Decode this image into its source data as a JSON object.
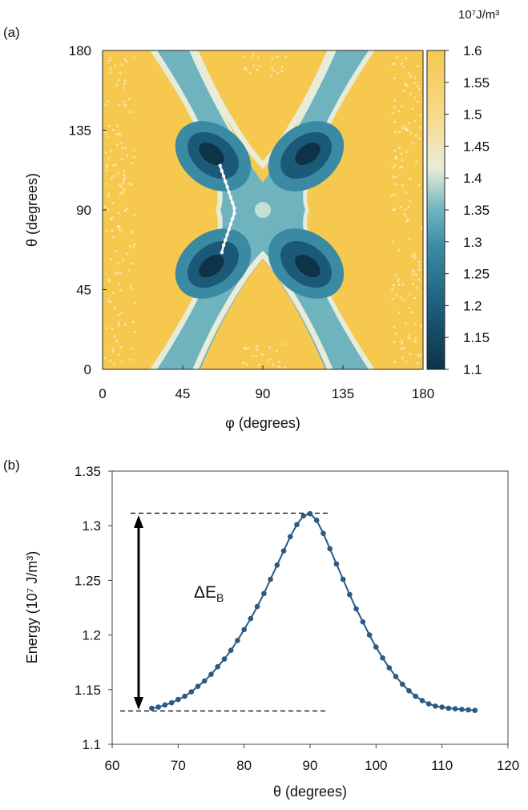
{
  "chart_data": [
    {
      "type": "heatmap",
      "panel_label": "(a)",
      "xlabel": "φ (degrees)",
      "ylabel": "θ (degrees)",
      "xlim": [
        0,
        180
      ],
      "ylim": [
        0,
        180
      ],
      "xticks": [
        "0",
        "45",
        "90",
        "135",
        "180"
      ],
      "yticks": [
        "0",
        "45",
        "90",
        "135",
        "180"
      ],
      "colorbar": {
        "unit": "10⁷J/m³",
        "range": [
          1.1,
          1.6
        ],
        "ticks": [
          "1.6",
          "1.55",
          "1.5",
          "1.45",
          "1.4",
          "1.35",
          "1.3",
          "1.25",
          "1.2",
          "1.15",
          "1.1"
        ],
        "colors": [
          "#0e3248",
          "#1a5a78",
          "#3a8aa3",
          "#6fb3bf",
          "#e8ecd9",
          "#f6dc8f",
          "#f6c84e"
        ]
      },
      "path": {
        "color": "#ffffff",
        "points": [
          [
            66,
            115
          ],
          [
            67,
            112
          ],
          [
            68,
            109
          ],
          [
            69,
            106
          ],
          [
            70,
            103
          ],
          [
            71,
            100
          ],
          [
            72,
            97
          ],
          [
            73,
            94
          ],
          [
            74,
            91
          ],
          [
            74,
            88
          ],
          [
            73,
            85
          ],
          [
            72,
            82
          ],
          [
            71,
            79
          ],
          [
            70,
            76
          ],
          [
            69,
            73
          ],
          [
            68,
            70
          ],
          [
            67,
            66
          ]
        ]
      },
      "minima": [
        [
          63,
          118
        ],
        [
          113,
          118
        ],
        [
          63,
          62
        ],
        [
          113,
          62
        ]
      ],
      "saddle": [
        90,
        90
      ]
    },
    {
      "type": "line",
      "panel_label": "(b)",
      "xlabel": "θ (degrees)",
      "ylabel": "Energy (10⁷ J/m³)",
      "xlim": [
        60,
        120
      ],
      "ylim": [
        1.1,
        1.35
      ],
      "xticks": [
        "60",
        "70",
        "80",
        "90",
        "100",
        "110",
        "120"
      ],
      "yticks": [
        "1.1",
        "1.15",
        "1.2",
        "1.25",
        "1.3",
        "1.35"
      ],
      "annotation": "ΔE_B",
      "annotation_text": "ΔE",
      "annotation_sub": "B",
      "reference_lines": [
        1.3115,
        1.1305
      ],
      "color": "#2b5a83",
      "series": [
        {
          "x": [
            66,
            67,
            68,
            69,
            70,
            71,
            72,
            73,
            74,
            75,
            76,
            77,
            78,
            79,
            80,
            81,
            82,
            83,
            84,
            85,
            86,
            87,
            88,
            89,
            90,
            91,
            92,
            93,
            94,
            95,
            96,
            97,
            98,
            99,
            100,
            101,
            102,
            103,
            104,
            105,
            106,
            107,
            108,
            109,
            110,
            111,
            112,
            113,
            114,
            115
          ],
          "values": [
            1.133,
            1.134,
            1.136,
            1.138,
            1.141,
            1.144,
            1.148,
            1.153,
            1.158,
            1.164,
            1.171,
            1.178,
            1.186,
            1.195,
            1.205,
            1.215,
            1.226,
            1.238,
            1.251,
            1.264,
            1.277,
            1.29,
            1.301,
            1.309,
            1.311,
            1.305,
            1.293,
            1.279,
            1.265,
            1.251,
            1.237,
            1.224,
            1.212,
            1.2,
            1.189,
            1.179,
            1.17,
            1.162,
            1.155,
            1.149,
            1.144,
            1.14,
            1.137,
            1.135,
            1.134,
            1.133,
            1.1325,
            1.132,
            1.1315,
            1.131
          ]
        }
      ]
    }
  ]
}
